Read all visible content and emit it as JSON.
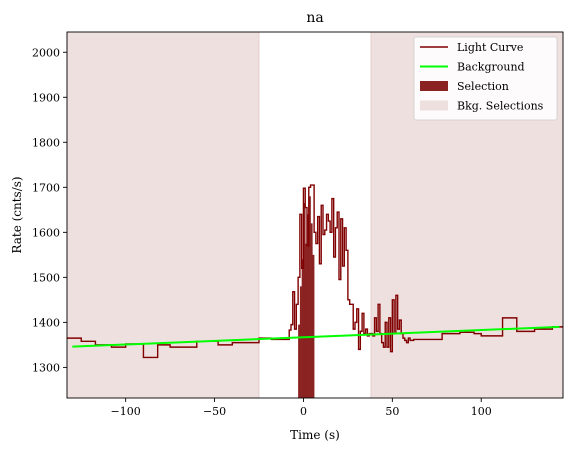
{
  "chart_data": {
    "type": "line",
    "title": "na",
    "xlabel": "Time (s)",
    "ylabel": "Rate (cnts/s)",
    "xlim": [
      -133,
      146
    ],
    "ylim": [
      1232,
      2045
    ],
    "xticks": [
      -100,
      -50,
      0,
      50,
      100
    ],
    "yticks": [
      1300,
      1400,
      1500,
      1600,
      1700,
      1800,
      1900,
      2000
    ],
    "legend_position": "top-right",
    "grid": false,
    "colors": {
      "light_curve": "#800000",
      "background": "#00ff00",
      "selection": "#8b2323",
      "bkg_selection": "#efe0e0"
    },
    "legend": [
      {
        "label": "Light Curve",
        "kind": "line",
        "color": "#800000"
      },
      {
        "label": "Background",
        "kind": "line",
        "color": "#00ff00"
      },
      {
        "label": "Selection",
        "kind": "patch",
        "color": "#8b2323"
      },
      {
        "label": "Bkg. Selections",
        "kind": "patch",
        "color": "#efe0e0"
      }
    ],
    "bkg_selections": [
      [
        -133,
        -25
      ],
      [
        38,
        146
      ]
    ],
    "selection": {
      "x": [
        -3,
        -2,
        -1,
        0,
        1,
        2,
        3,
        4,
        5
      ],
      "y": [
        1395,
        1480,
        1540,
        1665,
        1575,
        1640,
        1680,
        1620,
        1550
      ]
    },
    "background_line": {
      "x": [
        -130,
        144
      ],
      "y": [
        1346,
        1390
      ]
    },
    "light_curve": {
      "x": [
        -133,
        -125,
        -117,
        -108,
        -100,
        -90,
        -82,
        -75,
        -60,
        -48,
        -40,
        -25,
        -18,
        -8,
        -7,
        -6,
        -5,
        -4,
        -3,
        -2,
        -1,
        0,
        1,
        2,
        3,
        4,
        5,
        6,
        7,
        8,
        9,
        10,
        11,
        12,
        13,
        14,
        15,
        16,
        17,
        18,
        19,
        20,
        21,
        22,
        23,
        24,
        25,
        26,
        27,
        28,
        29,
        30,
        31,
        32,
        33,
        34,
        35,
        36,
        37,
        38,
        39,
        40,
        41,
        42,
        43,
        44,
        45,
        46,
        47,
        48,
        49,
        50,
        51,
        52,
        53,
        54,
        55,
        56,
        57,
        58,
        59,
        60,
        61,
        62,
        70,
        78,
        88,
        96,
        100,
        112,
        120,
        130,
        140
      ],
      "y": [
        1365,
        1358,
        1350,
        1345,
        1352,
        1322,
        1350,
        1345,
        1358,
        1350,
        1355,
        1365,
        1362,
        1383,
        1395,
        1468,
        1385,
        1440,
        1500,
        1640,
        1520,
        1698,
        1655,
        1570,
        1700,
        1705,
        1705,
        1600,
        1575,
        1635,
        1530,
        1660,
        1595,
        1605,
        1640,
        1625,
        1600,
        1675,
        1545,
        1610,
        1645,
        1495,
        1630,
        1525,
        1610,
        1560,
        1450,
        1440,
        1440,
        1385,
        1400,
        1430,
        1340,
        1380,
        1420,
        1375,
        1385,
        1370,
        1375,
        1375,
        1370,
        1410,
        1380,
        1440,
        1375,
        1355,
        1345,
        1400,
        1345,
        1410,
        1335,
        1450,
        1375,
        1460,
        1385,
        1405,
        1375,
        1365,
        1360,
        1355,
        1365,
        1360,
        1360,
        1362,
        1362,
        1375,
        1378,
        1375,
        1370,
        1410,
        1380,
        1385,
        1390
      ]
    }
  }
}
